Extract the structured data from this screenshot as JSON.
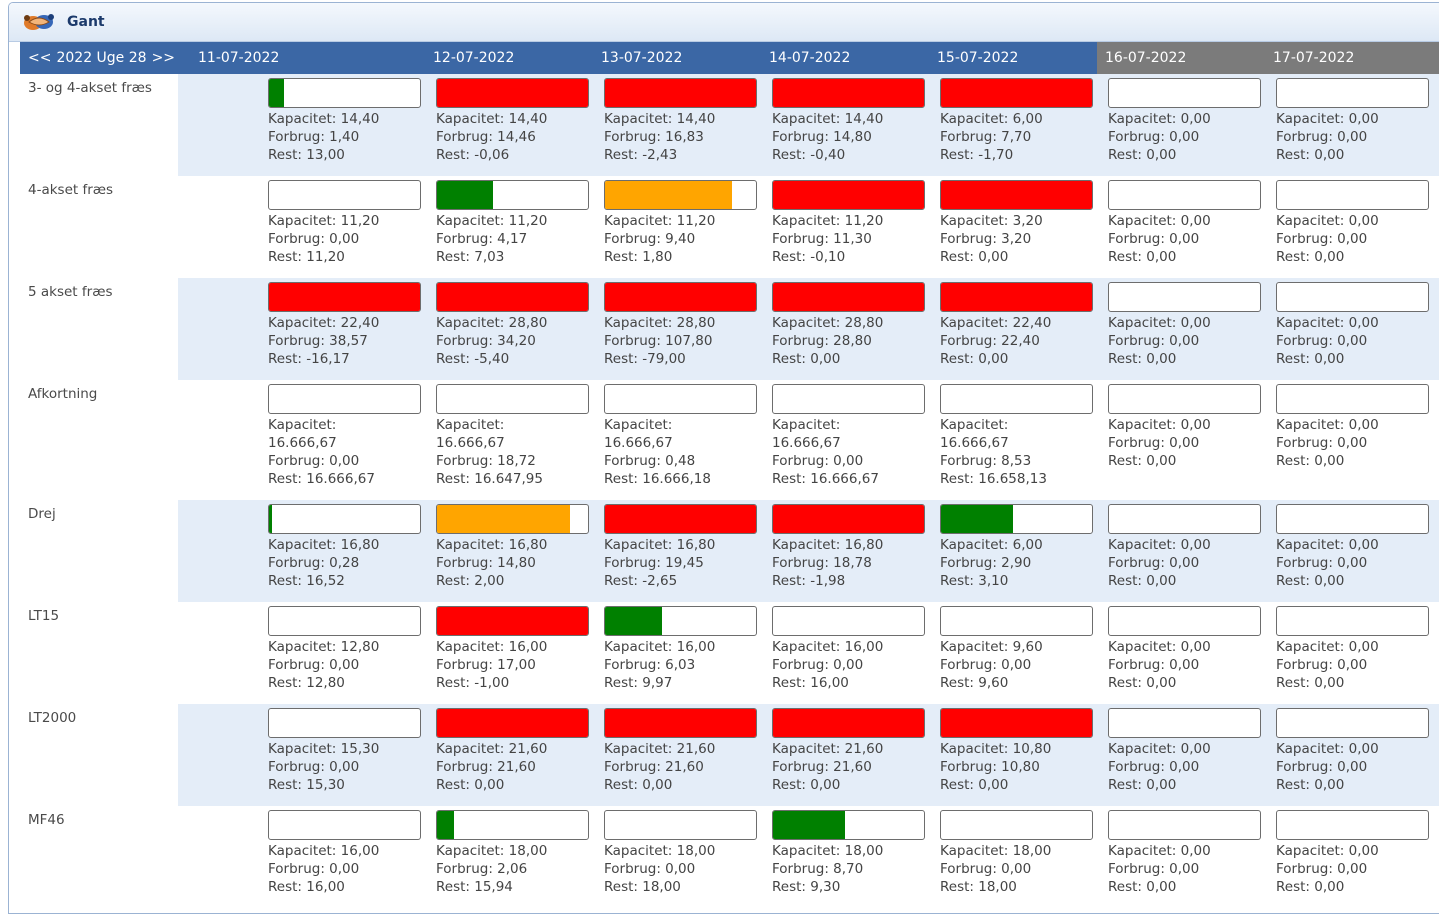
{
  "window": {
    "title": "Gant",
    "icon": "handshake-icon"
  },
  "header": {
    "prev": "<<",
    "week_label": "2022 Uge 28",
    "next": ">>",
    "days": [
      {
        "date": "11-07-2022",
        "weekend": false
      },
      {
        "date": "12-07-2022",
        "weekend": false
      },
      {
        "date": "13-07-2022",
        "weekend": false
      },
      {
        "date": "14-07-2022",
        "weekend": false
      },
      {
        "date": "15-07-2022",
        "weekend": false
      },
      {
        "date": "16-07-2022",
        "weekend": true
      },
      {
        "date": "17-07-2022",
        "weekend": true
      }
    ]
  },
  "colors": {
    "header": "#3b67a5",
    "weekend": "#7b7b7b",
    "ok": "#008000",
    "warn": "#ffa500",
    "over": "#ff0000",
    "alt_row": "#e4edf8"
  },
  "rows": [
    {
      "name": "3- og 4-akset fræs",
      "cells": [
        {
          "bar": {
            "status": "ok",
            "fill": 0.1
          },
          "lines": [
            "Kapacitet: 14,40",
            "Forbrug: 1,40",
            "Rest: 13,00"
          ]
        },
        {
          "bar": {
            "status": "over",
            "fill": 1
          },
          "lines": [
            "Kapacitet: 14,40",
            "Forbrug: 14,46",
            "Rest: -0,06"
          ]
        },
        {
          "bar": {
            "status": "over",
            "fill": 1
          },
          "lines": [
            "Kapacitet: 14,40",
            "Forbrug: 16,83",
            "Rest: -2,43"
          ]
        },
        {
          "bar": {
            "status": "over",
            "fill": 1
          },
          "lines": [
            "Kapacitet: 14,40",
            "Forbrug: 14,80",
            "Rest: -0,40"
          ]
        },
        {
          "bar": {
            "status": "over",
            "fill": 1
          },
          "lines": [
            "Kapacitet: 6,00",
            "Forbrug: 7,70",
            "Rest: -1,70"
          ]
        },
        {
          "bar": {
            "status": "none",
            "fill": 0
          },
          "lines": [
            "Kapacitet: 0,00",
            "Forbrug: 0,00",
            "Rest: 0,00"
          ]
        },
        {
          "bar": {
            "status": "none",
            "fill": 0
          },
          "lines": [
            "Kapacitet: 0,00",
            "Forbrug: 0,00",
            "Rest: 0,00"
          ]
        }
      ]
    },
    {
      "name": "4-akset fræs",
      "cells": [
        {
          "bar": {
            "status": "none",
            "fill": 0
          },
          "lines": [
            "Kapacitet: 11,20",
            "Forbrug: 0,00",
            "Rest: 11,20"
          ]
        },
        {
          "bar": {
            "status": "ok",
            "fill": 0.37
          },
          "lines": [
            "Kapacitet: 11,20",
            "Forbrug: 4,17",
            "Rest: 7,03"
          ]
        },
        {
          "bar": {
            "status": "warn",
            "fill": 0.84
          },
          "lines": [
            "Kapacitet: 11,20",
            "Forbrug: 9,40",
            "Rest: 1,80"
          ]
        },
        {
          "bar": {
            "status": "over",
            "fill": 1
          },
          "lines": [
            "Kapacitet: 11,20",
            "Forbrug: 11,30",
            "Rest: -0,10"
          ]
        },
        {
          "bar": {
            "status": "over",
            "fill": 1
          },
          "lines": [
            "Kapacitet: 3,20",
            "Forbrug: 3,20",
            "Rest: 0,00"
          ]
        },
        {
          "bar": {
            "status": "none",
            "fill": 0
          },
          "lines": [
            "Kapacitet: 0,00",
            "Forbrug: 0,00",
            "Rest: 0,00"
          ]
        },
        {
          "bar": {
            "status": "none",
            "fill": 0
          },
          "lines": [
            "Kapacitet: 0,00",
            "Forbrug: 0,00",
            "Rest: 0,00"
          ]
        }
      ]
    },
    {
      "name": "5 akset fræs",
      "cells": [
        {
          "bar": {
            "status": "over",
            "fill": 1
          },
          "lines": [
            "Kapacitet: 22,40",
            "Forbrug: 38,57",
            "Rest: -16,17"
          ]
        },
        {
          "bar": {
            "status": "over",
            "fill": 1
          },
          "lines": [
            "Kapacitet: 28,80",
            "Forbrug: 34,20",
            "Rest: -5,40"
          ]
        },
        {
          "bar": {
            "status": "over",
            "fill": 1
          },
          "lines": [
            "Kapacitet: 28,80",
            "Forbrug: 107,80",
            "Rest: -79,00"
          ]
        },
        {
          "bar": {
            "status": "over",
            "fill": 1
          },
          "lines": [
            "Kapacitet: 28,80",
            "Forbrug: 28,80",
            "Rest: 0,00"
          ]
        },
        {
          "bar": {
            "status": "over",
            "fill": 1
          },
          "lines": [
            "Kapacitet: 22,40",
            "Forbrug: 22,40",
            "Rest: 0,00"
          ]
        },
        {
          "bar": {
            "status": "none",
            "fill": 0
          },
          "lines": [
            "Kapacitet: 0,00",
            "Forbrug: 0,00",
            "Rest: 0,00"
          ]
        },
        {
          "bar": {
            "status": "none",
            "fill": 0
          },
          "lines": [
            "Kapacitet: 0,00",
            "Forbrug: 0,00",
            "Rest: 0,00"
          ]
        }
      ]
    },
    {
      "name": "Afkortning",
      "cells": [
        {
          "bar": {
            "status": "none",
            "fill": 0
          },
          "lines": [
            "Kapacitet:",
            "16.666,67",
            "Forbrug: 0,00",
            "Rest: 16.666,67"
          ]
        },
        {
          "bar": {
            "status": "none",
            "fill": 0
          },
          "lines": [
            "Kapacitet:",
            "16.666,67",
            "Forbrug: 18,72",
            "Rest: 16.647,95"
          ]
        },
        {
          "bar": {
            "status": "none",
            "fill": 0
          },
          "lines": [
            "Kapacitet:",
            "16.666,67",
            "Forbrug: 0,48",
            "Rest: 16.666,18"
          ]
        },
        {
          "bar": {
            "status": "none",
            "fill": 0
          },
          "lines": [
            "Kapacitet:",
            "16.666,67",
            "Forbrug: 0,00",
            "Rest: 16.666,67"
          ]
        },
        {
          "bar": {
            "status": "none",
            "fill": 0
          },
          "lines": [
            "Kapacitet:",
            "16.666,67",
            "Forbrug: 8,53",
            "Rest: 16.658,13"
          ]
        },
        {
          "bar": {
            "status": "none",
            "fill": 0
          },
          "lines": [
            "Kapacitet: 0,00",
            "Forbrug: 0,00",
            "Rest: 0,00"
          ]
        },
        {
          "bar": {
            "status": "none",
            "fill": 0
          },
          "lines": [
            "Kapacitet: 0,00",
            "Forbrug: 0,00",
            "Rest: 0,00"
          ]
        }
      ]
    },
    {
      "name": "Drej",
      "cells": [
        {
          "bar": {
            "status": "ok",
            "fill": 0.02
          },
          "lines": [
            "Kapacitet: 16,80",
            "Forbrug: 0,28",
            "Rest: 16,52"
          ]
        },
        {
          "bar": {
            "status": "warn",
            "fill": 0.88
          },
          "lines": [
            "Kapacitet: 16,80",
            "Forbrug: 14,80",
            "Rest: 2,00"
          ]
        },
        {
          "bar": {
            "status": "over",
            "fill": 1
          },
          "lines": [
            "Kapacitet: 16,80",
            "Forbrug: 19,45",
            "Rest: -2,65"
          ]
        },
        {
          "bar": {
            "status": "over",
            "fill": 1
          },
          "lines": [
            "Kapacitet: 16,80",
            "Forbrug: 18,78",
            "Rest: -1,98"
          ]
        },
        {
          "bar": {
            "status": "ok",
            "fill": 0.48
          },
          "lines": [
            "Kapacitet: 6,00",
            "Forbrug: 2,90",
            "Rest: 3,10"
          ]
        },
        {
          "bar": {
            "status": "none",
            "fill": 0
          },
          "lines": [
            "Kapacitet: 0,00",
            "Forbrug: 0,00",
            "Rest: 0,00"
          ]
        },
        {
          "bar": {
            "status": "none",
            "fill": 0
          },
          "lines": [
            "Kapacitet: 0,00",
            "Forbrug: 0,00",
            "Rest: 0,00"
          ]
        }
      ]
    },
    {
      "name": "LT15",
      "cells": [
        {
          "bar": {
            "status": "none",
            "fill": 0
          },
          "lines": [
            "Kapacitet: 12,80",
            "Forbrug: 0,00",
            "Rest: 12,80"
          ]
        },
        {
          "bar": {
            "status": "over",
            "fill": 1
          },
          "lines": [
            "Kapacitet: 16,00",
            "Forbrug: 17,00",
            "Rest: -1,00"
          ]
        },
        {
          "bar": {
            "status": "ok",
            "fill": 0.38
          },
          "lines": [
            "Kapacitet: 16,00",
            "Forbrug: 6,03",
            "Rest: 9,97"
          ]
        },
        {
          "bar": {
            "status": "none",
            "fill": 0
          },
          "lines": [
            "Kapacitet: 16,00",
            "Forbrug: 0,00",
            "Rest: 16,00"
          ]
        },
        {
          "bar": {
            "status": "none",
            "fill": 0
          },
          "lines": [
            "Kapacitet: 9,60",
            "Forbrug: 0,00",
            "Rest: 9,60"
          ]
        },
        {
          "bar": {
            "status": "none",
            "fill": 0
          },
          "lines": [
            "Kapacitet: 0,00",
            "Forbrug: 0,00",
            "Rest: 0,00"
          ]
        },
        {
          "bar": {
            "status": "none",
            "fill": 0
          },
          "lines": [
            "Kapacitet: 0,00",
            "Forbrug: 0,00",
            "Rest: 0,00"
          ]
        }
      ]
    },
    {
      "name": "LT2000",
      "cells": [
        {
          "bar": {
            "status": "none",
            "fill": 0
          },
          "lines": [
            "Kapacitet: 15,30",
            "Forbrug: 0,00",
            "Rest: 15,30"
          ]
        },
        {
          "bar": {
            "status": "over",
            "fill": 1
          },
          "lines": [
            "Kapacitet: 21,60",
            "Forbrug: 21,60",
            "Rest: 0,00"
          ]
        },
        {
          "bar": {
            "status": "over",
            "fill": 1
          },
          "lines": [
            "Kapacitet: 21,60",
            "Forbrug: 21,60",
            "Rest: 0,00"
          ]
        },
        {
          "bar": {
            "status": "over",
            "fill": 1
          },
          "lines": [
            "Kapacitet: 21,60",
            "Forbrug: 21,60",
            "Rest: 0,00"
          ]
        },
        {
          "bar": {
            "status": "over",
            "fill": 1
          },
          "lines": [
            "Kapacitet: 10,80",
            "Forbrug: 10,80",
            "Rest: 0,00"
          ]
        },
        {
          "bar": {
            "status": "none",
            "fill": 0
          },
          "lines": [
            "Kapacitet: 0,00",
            "Forbrug: 0,00",
            "Rest: 0,00"
          ]
        },
        {
          "bar": {
            "status": "none",
            "fill": 0
          },
          "lines": [
            "Kapacitet: 0,00",
            "Forbrug: 0,00",
            "Rest: 0,00"
          ]
        }
      ]
    },
    {
      "name": "MF46",
      "cells": [
        {
          "bar": {
            "status": "none",
            "fill": 0
          },
          "lines": [
            "Kapacitet: 16,00",
            "Forbrug: 0,00",
            "Rest: 16,00"
          ]
        },
        {
          "bar": {
            "status": "ok",
            "fill": 0.11
          },
          "lines": [
            "Kapacitet: 18,00",
            "Forbrug: 2,06",
            "Rest: 15,94"
          ]
        },
        {
          "bar": {
            "status": "none",
            "fill": 0
          },
          "lines": [
            "Kapacitet: 18,00",
            "Forbrug: 0,00",
            "Rest: 18,00"
          ]
        },
        {
          "bar": {
            "status": "ok",
            "fill": 0.48
          },
          "lines": [
            "Kapacitet: 18,00",
            "Forbrug: 8,70",
            "Rest: 9,30"
          ]
        },
        {
          "bar": {
            "status": "none",
            "fill": 0
          },
          "lines": [
            "Kapacitet: 18,00",
            "Forbrug: 0,00",
            "Rest: 18,00"
          ]
        },
        {
          "bar": {
            "status": "none",
            "fill": 0
          },
          "lines": [
            "Kapacitet: 0,00",
            "Forbrug: 0,00",
            "Rest: 0,00"
          ]
        },
        {
          "bar": {
            "status": "none",
            "fill": 0
          },
          "lines": [
            "Kapacitet: 0,00",
            "Forbrug: 0,00",
            "Rest: 0,00"
          ]
        }
      ]
    }
  ]
}
